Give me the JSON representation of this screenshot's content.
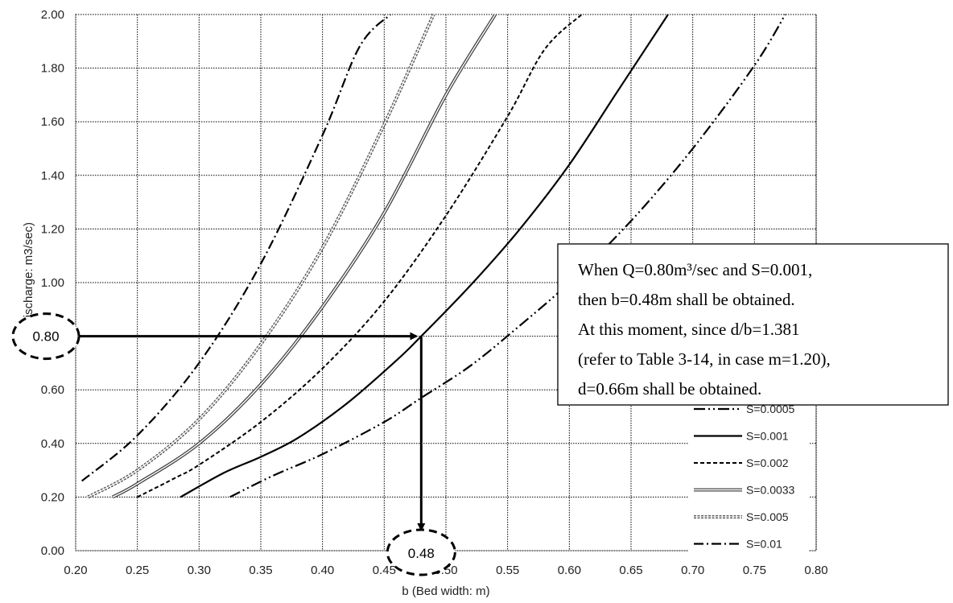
{
  "chart_data": {
    "type": "line",
    "xlabel": "b (Bed width: m)",
    "ylabel": "Q (Discharge: m3/sec)",
    "xlim": [
      0.2,
      0.8
    ],
    "ylim": [
      0.0,
      2.0
    ],
    "x_ticks": [
      "0.20",
      "0.25",
      "0.30",
      "0.35",
      "0.40",
      "0.45",
      "0.50",
      "0.55",
      "0.60",
      "0.65",
      "0.70",
      "0.75",
      "0.80"
    ],
    "y_ticks": [
      "0.00",
      "0.20",
      "0.40",
      "0.60",
      "0.80",
      "1.00",
      "1.20",
      "1.40",
      "1.60",
      "1.80",
      "2.00"
    ],
    "grid": true,
    "legend_position": "bottom-right",
    "series": [
      {
        "name": "S=0.0005",
        "style": "dash-dot-dot",
        "x": [
          0.325,
          0.36,
          0.4,
          0.45,
          0.48,
          0.52,
          0.56,
          0.6,
          0.65,
          0.7,
          0.75,
          0.775
        ],
        "y": [
          0.2,
          0.28,
          0.36,
          0.48,
          0.57,
          0.69,
          0.84,
          1.0,
          1.23,
          1.5,
          1.81,
          2.0
        ]
      },
      {
        "name": "S=0.001",
        "style": "solid",
        "x": [
          0.285,
          0.32,
          0.35,
          0.38,
          0.42,
          0.46,
          0.48,
          0.52,
          0.56,
          0.6,
          0.64,
          0.68
        ],
        "y": [
          0.2,
          0.29,
          0.35,
          0.42,
          0.55,
          0.71,
          0.8,
          0.99,
          1.2,
          1.44,
          1.72,
          2.0
        ]
      },
      {
        "name": "S=0.002",
        "style": "dashed",
        "x": [
          0.25,
          0.28,
          0.3,
          0.35,
          0.4,
          0.45,
          0.5,
          0.55,
          0.58,
          0.61
        ],
        "y": [
          0.2,
          0.27,
          0.32,
          0.48,
          0.68,
          0.93,
          1.25,
          1.62,
          1.87,
          2.0
        ]
      },
      {
        "name": "S=0.0033",
        "style": "double",
        "x": [
          0.23,
          0.25,
          0.3,
          0.35,
          0.4,
          0.45,
          0.5,
          0.54
        ],
        "y": [
          0.2,
          0.25,
          0.4,
          0.62,
          0.91,
          1.26,
          1.7,
          2.0
        ]
      },
      {
        "name": "S=0.005",
        "style": "dotted-double",
        "x": [
          0.21,
          0.25,
          0.3,
          0.35,
          0.4,
          0.45,
          0.49
        ],
        "y": [
          0.2,
          0.3,
          0.49,
          0.77,
          1.13,
          1.59,
          2.0
        ]
      },
      {
        "name": "S=0.01",
        "style": "dash-dot",
        "x": [
          0.205,
          0.25,
          0.3,
          0.35,
          0.4,
          0.43,
          0.455
        ],
        "y": [
          0.26,
          0.43,
          0.7,
          1.07,
          1.55,
          1.88,
          2.0
        ]
      }
    ],
    "annotation": {
      "x": 0.48,
      "y": 0.8,
      "x_label": "0.48",
      "y_label": "0.80",
      "note_lines": [
        "When  Q=0.80m³/sec  and  S=0.001,",
        "then b=0.48m shall be obtained.",
        "At  this  moment,  since  d/b=1.381",
        "(refer to Table 3-14, in case m=1.20),",
        "d=0.66m shall be obtained."
      ]
    }
  }
}
